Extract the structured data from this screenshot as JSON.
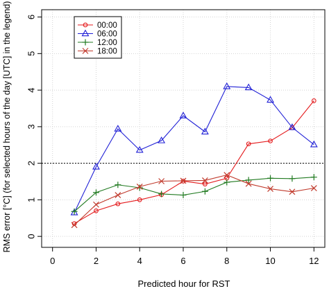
{
  "chart_data": {
    "type": "line",
    "title": "",
    "xlabel": "Predicted hour for RST",
    "ylabel": "RMS error [°C] (for selected hours of the day [UTC] in the legend)",
    "xlim": [
      -0.5,
      12.5
    ],
    "ylim": [
      -0.3,
      6.2
    ],
    "xticks": [
      0,
      2,
      4,
      6,
      8,
      10,
      12
    ],
    "yticks": [
      0,
      1,
      2,
      3,
      4,
      5,
      6
    ],
    "xtick_labels": [
      "0",
      "2",
      "4",
      "6",
      "8",
      "10",
      "12"
    ],
    "ytick_labels": [
      "0",
      "1",
      "2",
      "3",
      "4",
      "5",
      "6"
    ],
    "grid": true,
    "legend_position": "top-left",
    "reference_line": {
      "y": 2,
      "style": "dotted"
    },
    "x": [
      1,
      2,
      3,
      4,
      5,
      6,
      7,
      8,
      9,
      10,
      11,
      12
    ],
    "series": [
      {
        "name": "00:00",
        "color": "#e41a1c",
        "marker": "circle",
        "values": [
          0.35,
          0.7,
          0.89,
          1.0,
          1.14,
          1.51,
          1.43,
          1.59,
          2.53,
          2.61,
          2.97,
          3.71
        ]
      },
      {
        "name": "06:00",
        "color": "#1f1fd6",
        "marker": "triangle",
        "values": [
          0.65,
          1.9,
          2.94,
          2.36,
          2.62,
          3.3,
          2.86,
          4.1,
          4.07,
          3.73,
          2.98,
          2.51
        ]
      },
      {
        "name": "12:00",
        "color": "#207a20",
        "marker": "plus",
        "values": [
          0.68,
          1.2,
          1.41,
          1.33,
          1.16,
          1.13,
          1.23,
          1.48,
          1.54,
          1.59,
          1.58,
          1.62
        ]
      },
      {
        "name": "18:00",
        "color": "#c0392b",
        "marker": "cross",
        "values": [
          0.31,
          0.87,
          1.13,
          1.36,
          1.51,
          1.52,
          1.53,
          1.68,
          1.44,
          1.3,
          1.22,
          1.32
        ]
      }
    ]
  }
}
